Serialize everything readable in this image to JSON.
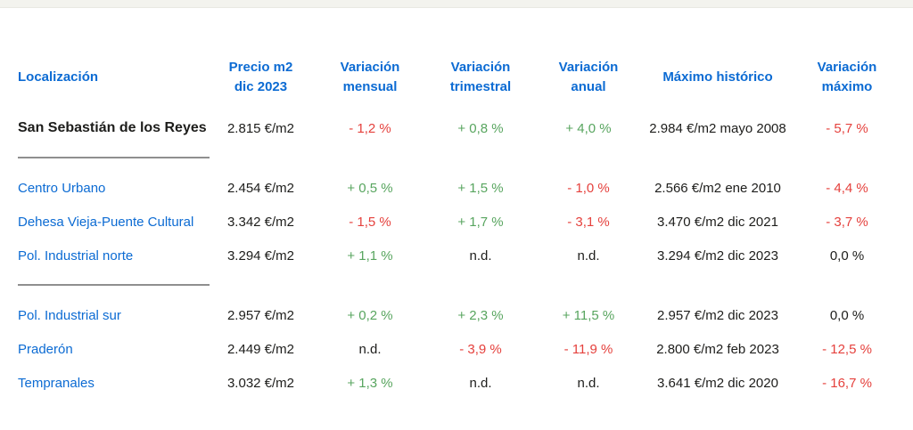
{
  "page": {
    "top_strip_color": "#f3f3ee"
  },
  "colors": {
    "header_blue": "#0c6bd3",
    "link_blue": "#0c6bd3",
    "positive_green": "#58a55f",
    "negative_red": "#e5413d",
    "text_dark": "#1d1d1b",
    "divider_gray": "#8f8f8f"
  },
  "table": {
    "headers": [
      {
        "line1": "Localización",
        "line2": ""
      },
      {
        "line1": "Precio m2",
        "line2": "dic 2023"
      },
      {
        "line1": "Variación",
        "line2": "mensual"
      },
      {
        "line1": "Variación",
        "line2": "trimestral"
      },
      {
        "line1": "Variación",
        "line2": "anual"
      },
      {
        "line1": "Máximo histórico",
        "line2": ""
      },
      {
        "line1": "Variación",
        "line2": "máximo"
      }
    ],
    "rows": [
      {
        "location": "San Sebastián de los Reyes",
        "emphasis": "true",
        "price": "2.815 €/m2",
        "monthly": {
          "text": "- 1,2 %",
          "color": "red"
        },
        "quarterly": {
          "text": "+ 0,8 %",
          "color": "green"
        },
        "annual": {
          "text": "+ 4,0 %",
          "color": "green"
        },
        "historic_max": "2.984 €/m2 mayo 2008",
        "max_variation": {
          "text": "- 5,7 %",
          "color": "red"
        }
      },
      {
        "location": "Centro Urbano",
        "emphasis": "false",
        "price": "2.454 €/m2",
        "monthly": {
          "text": "+ 0,5 %",
          "color": "green"
        },
        "quarterly": {
          "text": "+ 1,5 %",
          "color": "green"
        },
        "annual": {
          "text": "- 1,0 %",
          "color": "red"
        },
        "historic_max": "2.566 €/m2 ene 2010",
        "max_variation": {
          "text": "- 4,4 %",
          "color": "red"
        }
      },
      {
        "location": "Dehesa Vieja-Puente Cultural",
        "emphasis": "false",
        "price": "3.342 €/m2",
        "monthly": {
          "text": "- 1,5 %",
          "color": "red"
        },
        "quarterly": {
          "text": "+ 1,7 %",
          "color": "green"
        },
        "annual": {
          "text": "- 3,1 %",
          "color": "red"
        },
        "historic_max": "3.470 €/m2 dic 2021",
        "max_variation": {
          "text": "- 3,7 %",
          "color": "red"
        }
      },
      {
        "location": "Pol. Industrial norte",
        "emphasis": "false",
        "price": "3.294 €/m2",
        "monthly": {
          "text": "+ 1,1 %",
          "color": "green"
        },
        "quarterly": {
          "text": "n.d.",
          "color": "neutral"
        },
        "annual": {
          "text": "n.d.",
          "color": "neutral"
        },
        "historic_max": "3.294 €/m2 dic 2023",
        "max_variation": {
          "text": "0,0 %",
          "color": "neutral"
        }
      },
      {
        "location": "Pol. Industrial sur",
        "emphasis": "false",
        "price": "2.957 €/m2",
        "monthly": {
          "text": "+ 0,2 %",
          "color": "green"
        },
        "quarterly": {
          "text": "+ 2,3 %",
          "color": "green"
        },
        "annual": {
          "text": "+ 11,5 %",
          "color": "green"
        },
        "historic_max": "2.957 €/m2 dic 2023",
        "max_variation": {
          "text": "0,0 %",
          "color": "neutral"
        }
      },
      {
        "location": "Praderón",
        "emphasis": "false",
        "price": "2.449 €/m2",
        "monthly": {
          "text": "n.d.",
          "color": "neutral"
        },
        "quarterly": {
          "text": "- 3,9 %",
          "color": "red"
        },
        "annual": {
          "text": "- 11,9 %",
          "color": "red"
        },
        "historic_max": "2.800 €/m2 feb 2023",
        "max_variation": {
          "text": "- 12,5 %",
          "color": "red"
        }
      },
      {
        "location": "Tempranales",
        "emphasis": "false",
        "price": "3.032 €/m2",
        "monthly": {
          "text": "+ 1,3 %",
          "color": "green"
        },
        "quarterly": {
          "text": "n.d.",
          "color": "neutral"
        },
        "annual": {
          "text": "n.d.",
          "color": "neutral"
        },
        "historic_max": "3.641 €/m2 dic 2020",
        "max_variation": {
          "text": "- 16,7 %",
          "color": "red"
        }
      }
    ]
  }
}
